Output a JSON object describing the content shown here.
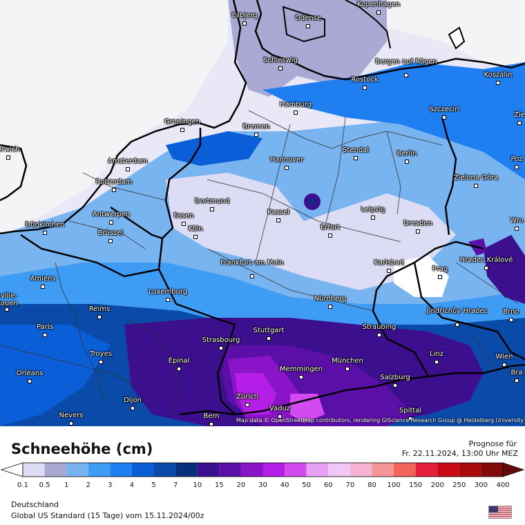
{
  "legend": {
    "title": "Schneehöhe (cm)",
    "forecast_label": "Prognose für",
    "forecast_date": "Fr. 22.11.2024, 13:00 Uhr MEZ",
    "ticks": [
      "0.1",
      "0.5",
      "1",
      "2",
      "3",
      "4",
      "5",
      "7",
      "10",
      "15",
      "20",
      "30",
      "40",
      "50",
      "60",
      "70",
      "80",
      "100",
      "150",
      "200",
      "250",
      "300",
      "400"
    ],
    "colors": [
      "#ffffff",
      "#dcdcf5",
      "#a9a9d4",
      "#78b4f0",
      "#3f9cf5",
      "#1f7ef0",
      "#0a5fd8",
      "#0a4aa8",
      "#0a2f7a",
      "#3c0f8f",
      "#5a0fa6",
      "#8a14c8",
      "#b41ee6",
      "#d24bf0",
      "#e6a0f5",
      "#f0c8f5",
      "#f5b4d2",
      "#f59696",
      "#f0645a",
      "#e61e3c",
      "#c80a14",
      "#aa0a0a",
      "#820a0a",
      "#640a0a"
    ]
  },
  "region": "Deutschland",
  "model_run": "Global US Standard (15 Tage) vom  15.11.2024/00z",
  "attribution": "Map data © OpenStreetMap contributors, rendering GIScience Research Group @ Heidelberg University",
  "cities": [
    {
      "name": "Esbjerg"
    },
    {
      "name": "Kopenhagen"
    },
    {
      "name": "Odense"
    },
    {
      "name": "Schleswig"
    },
    {
      "name": "Bergen auf Rügen"
    },
    {
      "name": "Rostock"
    },
    {
      "name": "Koszalin"
    },
    {
      "name": "Hamburg"
    },
    {
      "name": "Szczecin"
    },
    {
      "name": "Groningen"
    },
    {
      "name": "Bremen"
    },
    {
      "name": "Stendal"
    },
    {
      "name": "Berlin"
    },
    {
      "name": "Amsterdam"
    },
    {
      "name": "Hannover"
    },
    {
      "name": "Zielona Góra"
    },
    {
      "name": "Rotterdam"
    },
    {
      "name": "Dortmund"
    },
    {
      "name": "Antwerpen"
    },
    {
      "name": "Essen"
    },
    {
      "name": "Kassel"
    },
    {
      "name": "Leipzig"
    },
    {
      "name": "Dünkirchen"
    },
    {
      "name": "Köln"
    },
    {
      "name": "Erfurt"
    },
    {
      "name": "Dresden"
    },
    {
      "name": "Brüssel"
    },
    {
      "name": "Frankfurt am Main"
    },
    {
      "name": "Karlsbad"
    },
    {
      "name": "Hradec Králové"
    },
    {
      "name": "Amiens"
    },
    {
      "name": "Prag"
    },
    {
      "name": "Luxemburg"
    },
    {
      "name": "Nürnberg"
    },
    {
      "name": "Jindřichův Hradec"
    },
    {
      "name": "Reims"
    },
    {
      "name": "Brno"
    },
    {
      "name": "Paris"
    },
    {
      "name": "Stuttgart"
    },
    {
      "name": "Straubing"
    },
    {
      "name": "Strasbourg"
    },
    {
      "name": "Troyes"
    },
    {
      "name": "Épinal"
    },
    {
      "name": "München"
    },
    {
      "name": "Linz"
    },
    {
      "name": "Wien"
    },
    {
      "name": "Memmingen"
    },
    {
      "name": "Orléans"
    },
    {
      "name": "Salzburg"
    },
    {
      "name": "Dijon"
    },
    {
      "name": "Zürich"
    },
    {
      "name": "Vaduz"
    },
    {
      "name": "Nevers"
    },
    {
      "name": "Bern"
    },
    {
      "name": "Spittal"
    },
    {
      "name": "orwich"
    },
    {
      "name": "Zie"
    },
    {
      "name": "Poz"
    },
    {
      "name": "Wro"
    },
    {
      "name": "Bra"
    },
    {
      "name": "eville-\nRouen"
    }
  ]
}
